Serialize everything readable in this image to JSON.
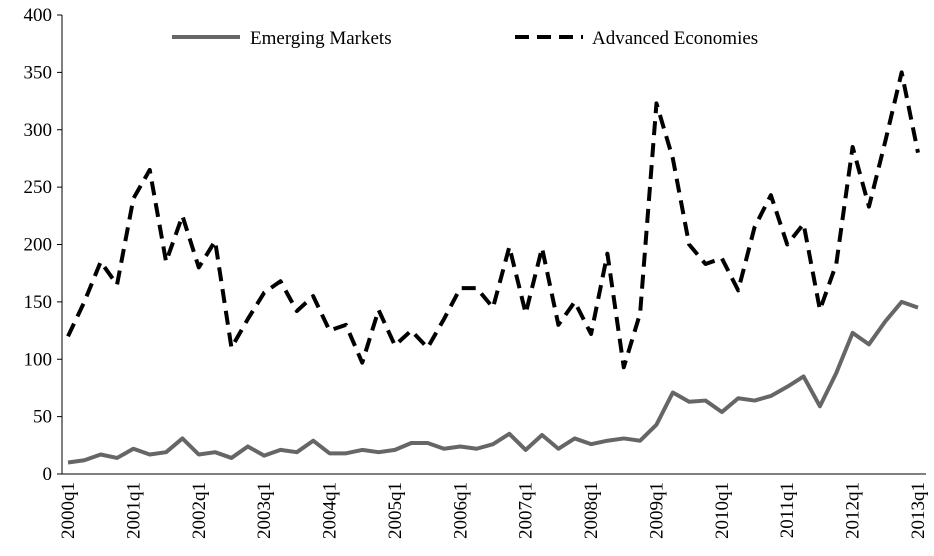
{
  "chart_data": {
    "type": "line",
    "categories": [
      "2000q1",
      null,
      null,
      null,
      "2001q1",
      null,
      null,
      null,
      "2002q1",
      null,
      null,
      null,
      "2003q1",
      null,
      null,
      null,
      "2004q1",
      null,
      null,
      null,
      "2005q1",
      null,
      null,
      null,
      "2006q1",
      null,
      null,
      null,
      "2007q1",
      null,
      null,
      null,
      "2008q1",
      null,
      null,
      null,
      "2009q1",
      null,
      null,
      null,
      "2010q1",
      null,
      null,
      null,
      "2011q1",
      null,
      null,
      null,
      "2012q1",
      null,
      null,
      null,
      "2013q1"
    ],
    "series": [
      {
        "name": "Emerging Markets",
        "color": "#666666",
        "dashed": false,
        "values": [
          10,
          12,
          17,
          14,
          22,
          17,
          19,
          31,
          17,
          19,
          14,
          24,
          16,
          21,
          19,
          29,
          18,
          18,
          21,
          19,
          21,
          27,
          27,
          22,
          24,
          22,
          26,
          35,
          21,
          34,
          22,
          31,
          26,
          29,
          31,
          29,
          43,
          71,
          63,
          64,
          54,
          66,
          64,
          68,
          76,
          85,
          59,
          88,
          123,
          113,
          133,
          150,
          145
        ]
      },
      {
        "name": "Advanced Economies",
        "color": "#000000",
        "dashed": true,
        "values": [
          120,
          150,
          185,
          165,
          240,
          265,
          185,
          225,
          180,
          203,
          110,
          135,
          158,
          168,
          142,
          155,
          125,
          130,
          97,
          143,
          112,
          125,
          110,
          135,
          162,
          162,
          145,
          198,
          140,
          197,
          130,
          150,
          122,
          192,
          93,
          140,
          323,
          275,
          200,
          183,
          188,
          160,
          215,
          243,
          200,
          218,
          143,
          183,
          285,
          233,
          290,
          350,
          280
        ]
      }
    ],
    "ylim": [
      0,
      400
    ],
    "yticks": [
      0,
      50,
      100,
      150,
      200,
      250,
      300,
      350,
      400
    ],
    "grid": false,
    "legend": "top"
  }
}
